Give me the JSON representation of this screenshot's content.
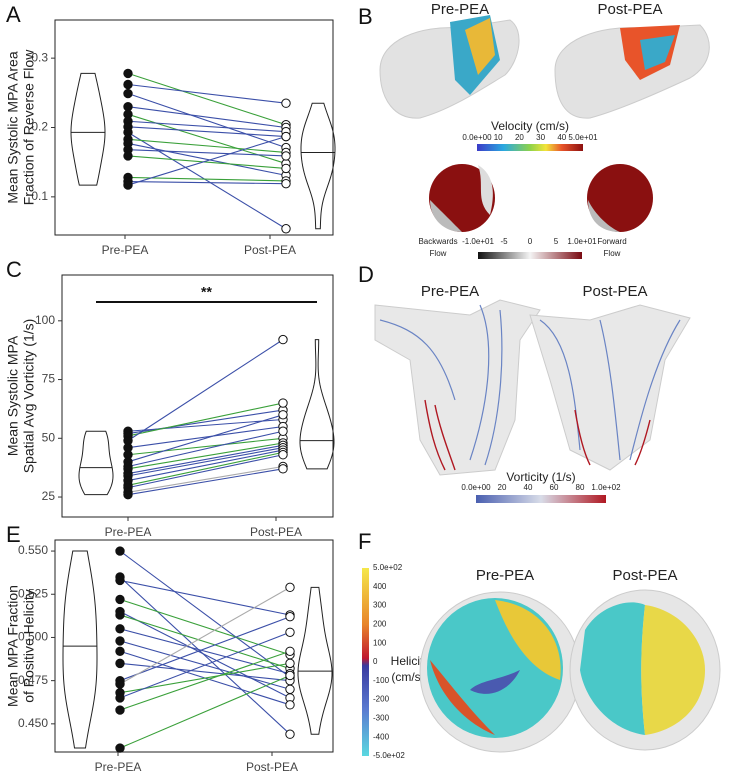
{
  "chart_data": [
    {
      "type": "paired",
      "panel": "A",
      "ylabel": [
        "Mean Systolic MPA Area",
        "Fraction of Reverse Flow"
      ],
      "categories": [
        "Pre-PEA",
        "Post-PEA"
      ],
      "values": [
        [
          0.278,
          0.262,
          0.249,
          0.23,
          0.219,
          0.209,
          0.201,
          0.193,
          0.183,
          0.177,
          0.168,
          0.159,
          0.128,
          0.122,
          0.117
        ],
        [
          0.204,
          0.235,
          0.171,
          0.2,
          0.148,
          0.194,
          0.187,
          0.054,
          0.164,
          0.131,
          0.159,
          0.141,
          0.123,
          0.119,
          0.187
        ]
      ],
      "line_colors": [
        "#3aa03a",
        "#3b4fa8",
        "#3b4fa8",
        "#3b4fa8",
        "#3aa03a",
        "#3b4fa8",
        "#3b4fa8",
        "#3b4fa8",
        "#3aa03a",
        "#3b4fa8",
        "#3b4fa8",
        "#3aa03a",
        "#3aa03a",
        "#3b4fa8",
        "#3b4fa8"
      ],
      "ylim": [
        0.045,
        0.355
      ],
      "yticks": [
        0.1,
        0.2,
        0.3
      ]
    },
    {
      "type": "paired",
      "panel": "C",
      "ylabel": [
        "Mean Systolic MPA",
        "Spatial Avg Vorticity (1/s)"
      ],
      "categories": [
        "Pre-PEA",
        "Post-PEA"
      ],
      "annotation": "**",
      "values": [
        [
          53,
          52,
          51,
          49,
          46,
          43,
          40,
          38,
          37,
          35,
          34,
          32,
          30,
          29,
          27,
          26
        ],
        [
          58,
          62,
          65,
          92,
          55,
          50,
          60,
          53,
          48,
          47,
          46,
          45,
          44,
          43,
          38,
          37
        ]
      ],
      "line_colors": [
        "#3b4fa8",
        "#3b4fa8",
        "#3aa03a",
        "#3b4fa8",
        "#3b4fa8",
        "#3aa03a",
        "#3b4fa8",
        "#3b4fa8",
        "#3aa03a",
        "#3b4fa8",
        "#3b4fa8",
        "#3b4fa8",
        "#3aa03a",
        "#3b4fa8",
        "#aaaaaa",
        "#3b4fa8"
      ],
      "ylim": [
        16.5,
        119.5
      ],
      "yticks": [
        25,
        50,
        75,
        100
      ]
    },
    {
      "type": "paired",
      "panel": "E",
      "ylabel": [
        "Mean MPA Fraction",
        "of Positive Helicity"
      ],
      "categories": [
        "Pre-PEA",
        "Post-PEA"
      ],
      "values": [
        [
          0.55,
          0.535,
          0.533,
          0.522,
          0.515,
          0.513,
          0.505,
          0.498,
          0.492,
          0.485,
          0.475,
          0.473,
          0.468,
          0.465,
          0.458,
          0.436
        ],
        [
          0.477,
          0.444,
          0.513,
          0.49,
          0.465,
          0.482,
          0.479,
          0.47,
          0.461,
          0.475,
          0.512,
          0.529,
          0.485,
          0.503,
          0.492,
          0.478
        ]
      ],
      "line_colors": [
        "#3b4fa8",
        "#3b4fa8",
        "#3b4fa8",
        "#3aa03a",
        "#3b4fa8",
        "#3aa03a",
        "#3b4fa8",
        "#3b4fa8",
        "#3b4fa8",
        "#3b4fa8",
        "#3b4fa8",
        "#aaaaaa",
        "#3aa03a",
        "#3b4fa8",
        "#3aa03a",
        "#3aa03a"
      ],
      "ylim": [
        0.4337,
        0.5564
      ],
      "yticks": [
        {
          "value": 0.45,
          "label": "0.450"
        },
        {
          "value": 0.475,
          "label": "0.475"
        },
        {
          "value": 0.5,
          "label": "0.500"
        },
        {
          "value": 0.525,
          "label": "0.525"
        },
        {
          "value": 0.55,
          "label": "0.550"
        }
      ]
    }
  ],
  "panels": {
    "B": {
      "letter": "B",
      "pre": "Pre-PEA",
      "post": "Post-PEA",
      "bar_title": "Velocity (cm/s)",
      "bar_ticks": [
        "0.0e+00",
        "10",
        "20",
        "30",
        "40",
        "5.0e+01"
      ],
      "flow_ticks": [
        "-1.0e+01",
        "-5",
        "0",
        "5",
        "1.0e+01"
      ],
      "flow_left": [
        "Backwards",
        "Flow"
      ],
      "flow_right": [
        "Forward",
        "Flow"
      ]
    },
    "D": {
      "letter": "D",
      "pre": "Pre-PEA",
      "post": "Post-PEA",
      "bar_title": "Vorticity (1/s)",
      "bar_ticks": [
        "0.0e+00",
        "20",
        "40",
        "60",
        "80",
        "1.0e+02"
      ]
    },
    "F": {
      "letter": "F",
      "pre": "Pre-PEA",
      "post": "Post-PEA",
      "bar_title": [
        "Helicity",
        "(cm/s²)"
      ],
      "bar_ticks": [
        "5.0e+02",
        "400",
        "300",
        "200",
        "100",
        "0",
        "-100",
        "-200",
        "-300",
        "-400",
        "-5.0e+02"
      ]
    }
  }
}
